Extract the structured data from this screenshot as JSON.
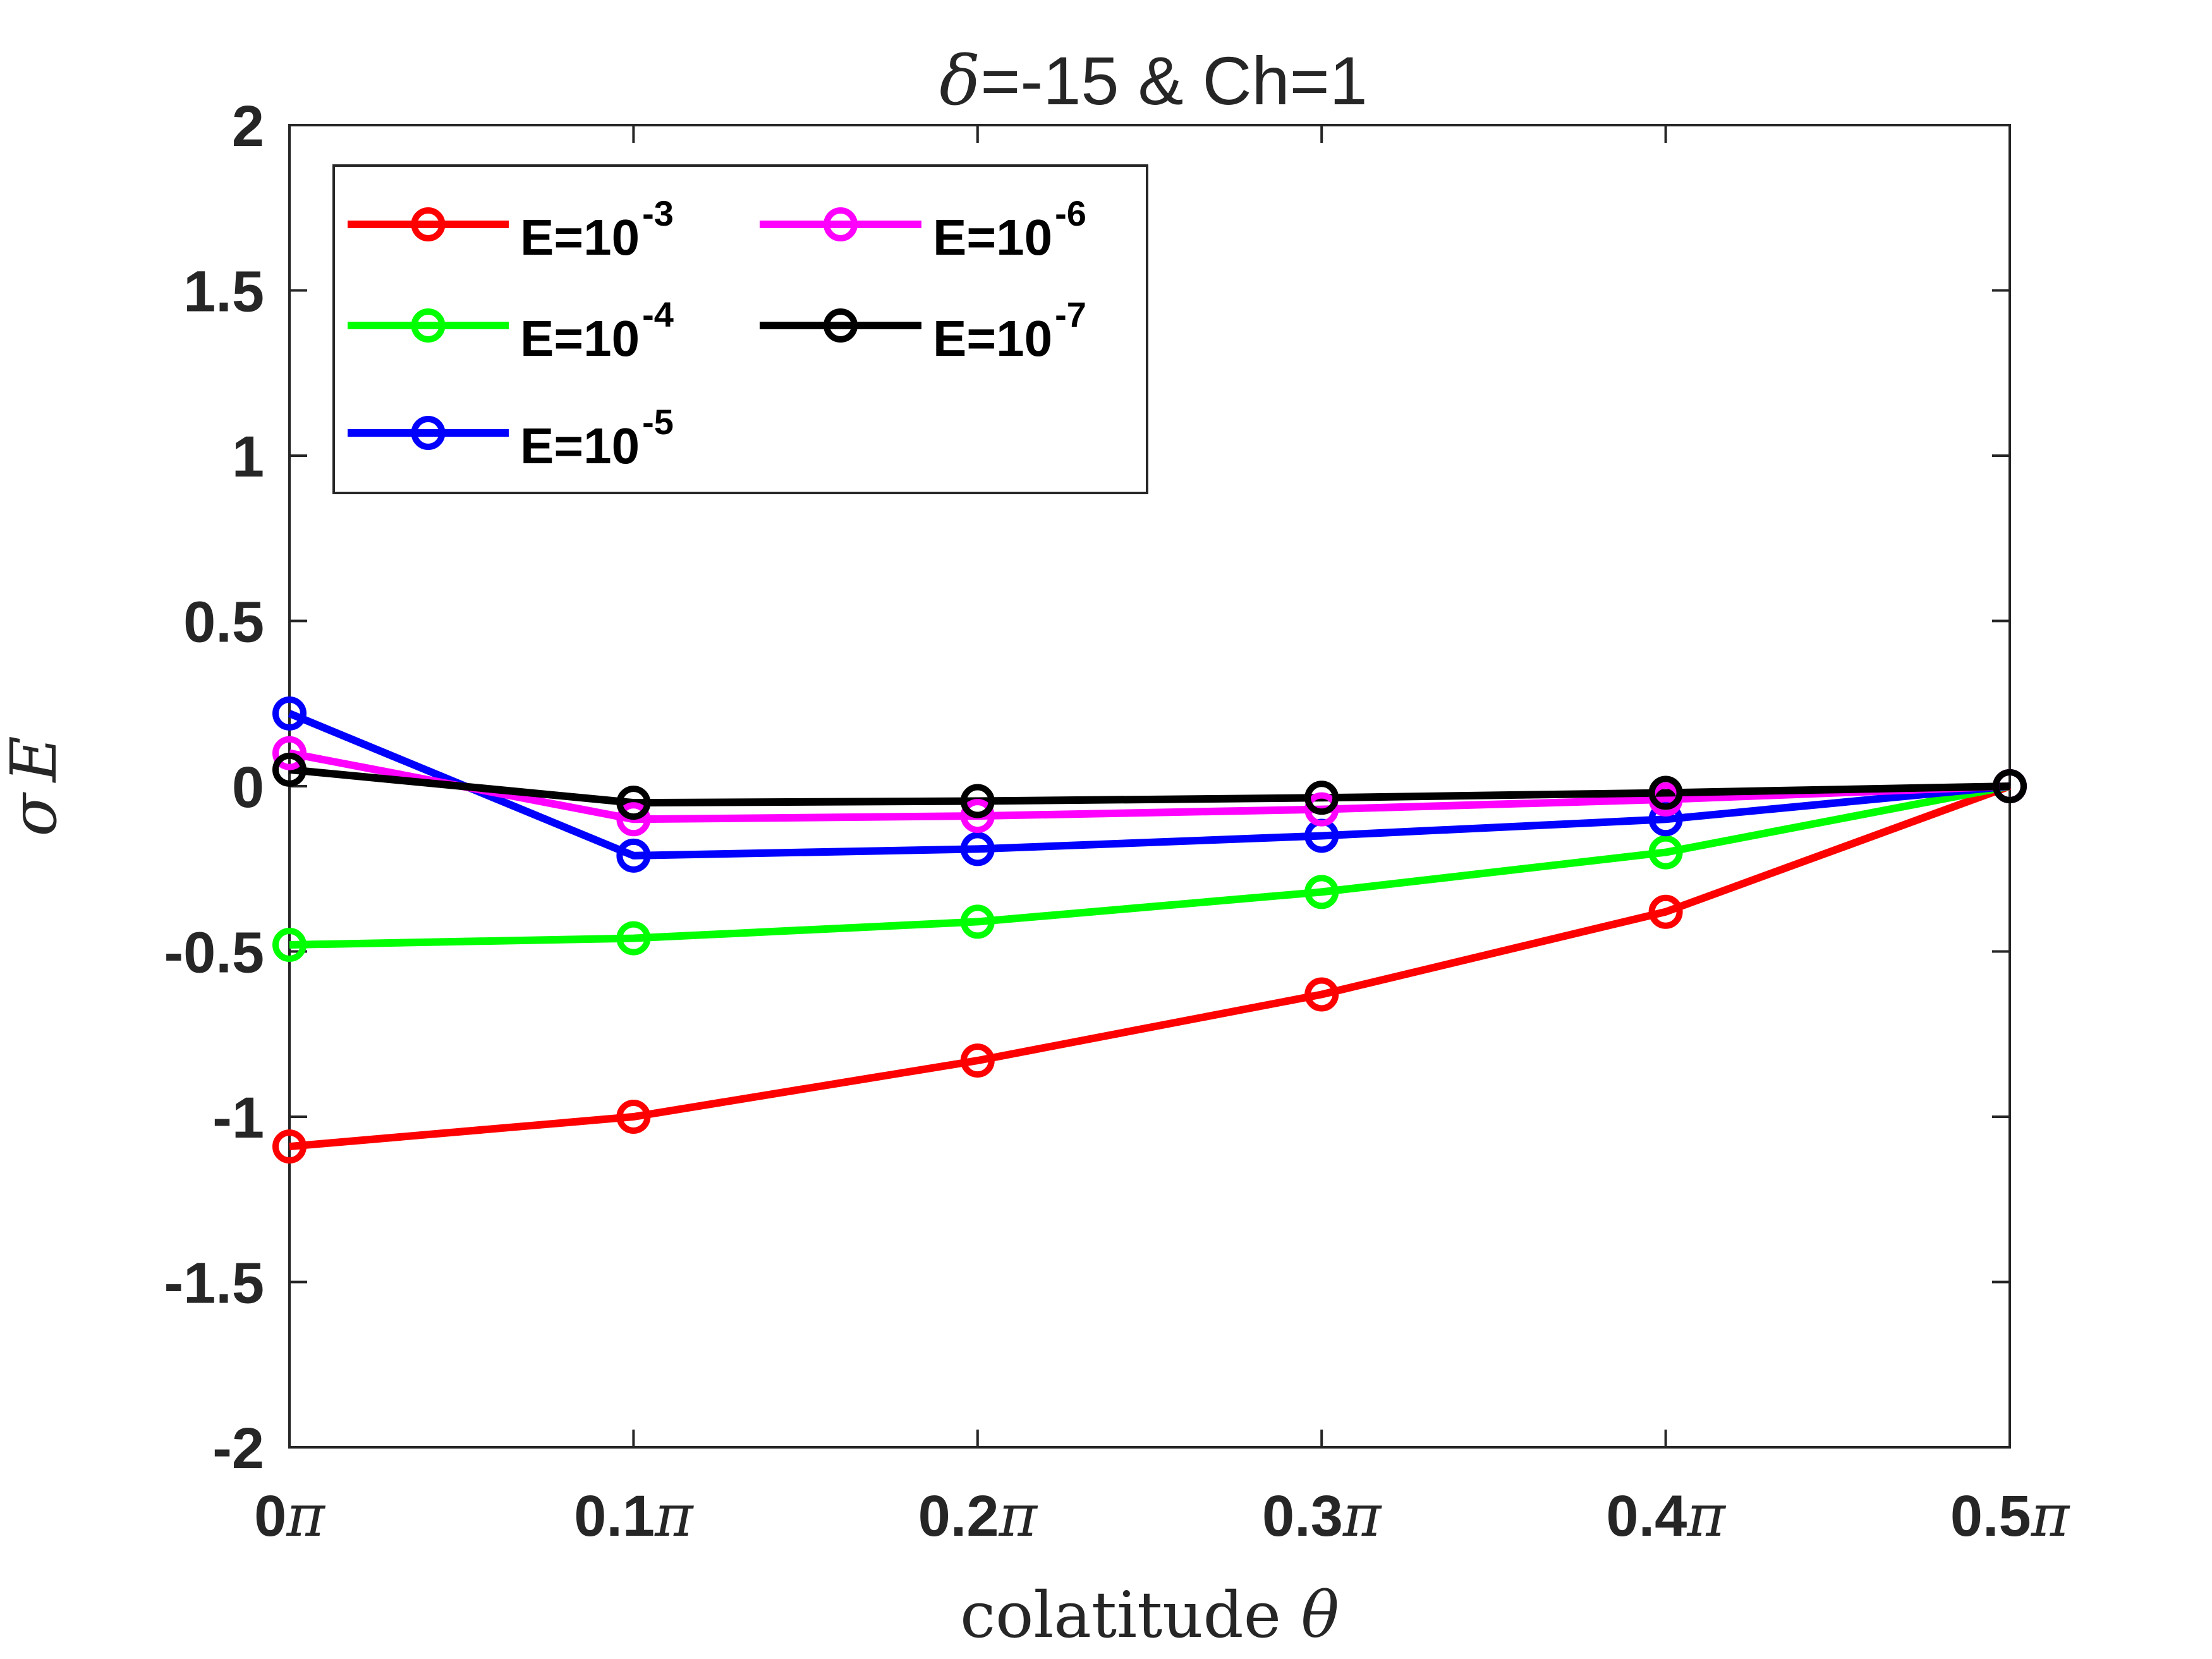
{
  "chart_data": {
    "type": "line",
    "title": {
      "symbol": "δ",
      "text": "=-15 & Ch=1"
    },
    "xlabel": {
      "text": "colatitude ",
      "symbol": "θ"
    },
    "ylabel": {
      "text": "σ",
      "symbol": "E"
    },
    "x": [
      0,
      0.1,
      0.2,
      0.3,
      0.4,
      0.5
    ],
    "xticks": [
      {
        "value": 0,
        "label": "0",
        "suffix": "π"
      },
      {
        "value": 0.1,
        "label": "0.1",
        "suffix": "π"
      },
      {
        "value": 0.2,
        "label": "0.2",
        "suffix": "π"
      },
      {
        "value": 0.3,
        "label": "0.3",
        "suffix": "π"
      },
      {
        "value": 0.4,
        "label": "0.4",
        "suffix": "π"
      },
      {
        "value": 0.5,
        "label": "0.5",
        "suffix": "π"
      }
    ],
    "yticks": [
      {
        "value": 2,
        "label": "2"
      },
      {
        "value": 1.5,
        "label": "1.5"
      },
      {
        "value": 1,
        "label": "1"
      },
      {
        "value": 0.5,
        "label": "0.5"
      },
      {
        "value": 0,
        "label": "0"
      },
      {
        "value": -0.5,
        "label": "-0.5"
      },
      {
        "value": -1,
        "label": "-1"
      },
      {
        "value": -1.5,
        "label": "-1.5"
      },
      {
        "value": -2,
        "label": "-2"
      }
    ],
    "xlim": [
      0,
      0.5
    ],
    "ylim": [
      -2,
      2
    ],
    "grid": false,
    "legend_position": "top-left",
    "series": [
      {
        "name": "E=10",
        "exponent": "-3",
        "color": "#ff0000",
        "values": [
          -1.09,
          -1.0,
          -0.83,
          -0.63,
          -0.38,
          0.0
        ]
      },
      {
        "name": "E=10",
        "exponent": "-4",
        "color": "#00ff00",
        "values": [
          -0.48,
          -0.46,
          -0.41,
          -0.32,
          -0.2,
          0.0
        ]
      },
      {
        "name": "E=10",
        "exponent": "-5",
        "color": "#0000ff",
        "values": [
          0.22,
          -0.21,
          -0.19,
          -0.15,
          -0.1,
          0.0
        ]
      },
      {
        "name": "E=10",
        "exponent": "-6",
        "color": "#ff00ff",
        "values": [
          0.1,
          -0.1,
          -0.09,
          -0.07,
          -0.04,
          0.0
        ]
      },
      {
        "name": "E=10",
        "exponent": "-7",
        "color": "#000000",
        "values": [
          0.05,
          -0.05,
          -0.045,
          -0.035,
          -0.02,
          0.0
        ]
      }
    ]
  }
}
